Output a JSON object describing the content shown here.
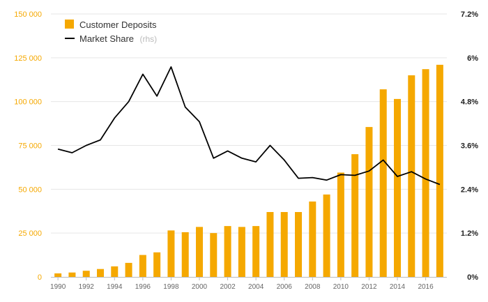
{
  "chart_data": {
    "type": "bar",
    "x": [
      1990,
      1991,
      1992,
      1993,
      1994,
      1995,
      1996,
      1997,
      1998,
      1999,
      2000,
      2001,
      2002,
      2003,
      2004,
      2005,
      2006,
      2007,
      2008,
      2009,
      2010,
      2011,
      2012,
      2013,
      2014,
      2015,
      2016,
      2017
    ],
    "x_tick_labels": [
      "1990",
      "1992",
      "1994",
      "1996",
      "1998",
      "2000",
      "2002",
      "2004",
      "2006",
      "2008",
      "2010",
      "2012",
      "2014",
      "2016"
    ],
    "series": [
      {
        "name": "Customer Deposits",
        "type": "bar",
        "axis": "left",
        "color": "#f5a800",
        "values": [
          2000,
          2500,
          3500,
          4500,
          6000,
          8000,
          12500,
          14000,
          26500,
          25500,
          28500,
          25000,
          29000,
          28500,
          29000,
          37000,
          37000,
          37000,
          43000,
          47000,
          59500,
          70000,
          85500,
          107000,
          101500,
          115000,
          118500,
          121000
        ]
      },
      {
        "name": "Market Share",
        "legend_suffix": "(rhs)",
        "type": "line",
        "axis": "right",
        "color": "#000000",
        "values": [
          3.5,
          3.4,
          3.6,
          3.75,
          4.35,
          4.8,
          5.55,
          4.95,
          5.75,
          4.65,
          4.25,
          3.25,
          3.45,
          3.25,
          3.15,
          3.6,
          3.2,
          2.7,
          2.72,
          2.65,
          2.8,
          2.78,
          2.9,
          3.2,
          2.75,
          2.88,
          2.68,
          2.53
        ]
      }
    ],
    "y_left": {
      "range": [
        0,
        150000
      ],
      "ticks": [
        0,
        25000,
        50000,
        75000,
        100000,
        125000,
        150000
      ],
      "tick_labels": [
        "0",
        "25 000",
        "50 000",
        "75 000",
        "100 000",
        "125 000",
        "150 000"
      ]
    },
    "y_right": {
      "range": [
        0,
        7.2
      ],
      "ticks": [
        0,
        1.2,
        2.4,
        3.6,
        4.8,
        6,
        7.2
      ],
      "tick_labels": [
        "0%",
        "1.2%",
        "2.4%",
        "3.6%",
        "4.8%",
        "6%",
        "7.2%"
      ]
    },
    "grid": "horizontal",
    "legend_position": "top-left"
  }
}
